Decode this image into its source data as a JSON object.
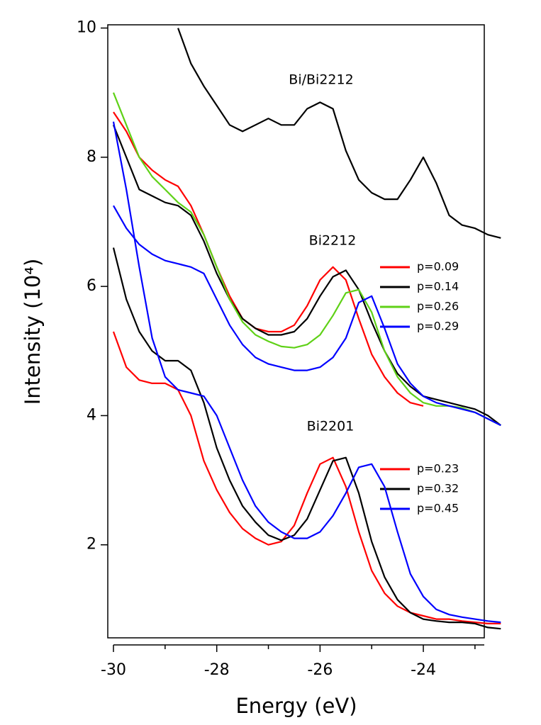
{
  "chart_data": {
    "type": "line",
    "xlabel": "Energy (eV)",
    "ylabel": "Intensity (10⁴)",
    "xlim": [
      -30.11,
      -22.82
    ],
    "ylim": [
      0.56,
      10.05
    ],
    "xticks": [
      -30,
      -28,
      -26,
      -24
    ],
    "x_minor_ticks": [
      -29,
      -27,
      -25,
      -23
    ],
    "yticks": [
      2,
      4,
      6,
      8,
      10
    ],
    "x": [
      -30,
      -29.75,
      -29.5,
      -29.25,
      -29,
      -28.75,
      -28.5,
      -28.25,
      -28,
      -27.75,
      -27.5,
      -27.25,
      -27,
      -26.75,
      -26.5,
      -26.25,
      -26,
      -25.75,
      -25.5,
      -25.25,
      -25,
      -24.75,
      -24.5,
      -24.25,
      -24,
      -23.75,
      -23.5,
      -23.25,
      -23,
      -22.75,
      -22.5
    ],
    "groups": [
      {
        "name": "Bi/Bi2212",
        "series": [
          {
            "color": "#000000",
            "values": [
              null,
              null,
              null,
              null,
              null,
              10.0,
              9.45,
              9.1,
              8.8,
              8.5,
              8.4,
              8.5,
              8.6,
              8.5,
              8.5,
              8.75,
              8.85,
              8.75,
              8.1,
              7.65,
              7.45,
              7.35,
              7.35,
              7.65,
              8.0,
              7.6,
              7.1,
              6.95,
              6.9,
              6.8,
              6.75
            ]
          }
        ]
      },
      {
        "name": "Bi2212",
        "series": [
          {
            "name": "p=0.09",
            "color": "#ff0000",
            "values": [
              8.7,
              8.4,
              8.0,
              7.8,
              7.65,
              7.55,
              7.25,
              6.8,
              6.3,
              5.85,
              5.5,
              5.35,
              5.3,
              5.3,
              5.4,
              5.7,
              6.1,
              6.3,
              6.1,
              5.5,
              4.95,
              4.6,
              4.35,
              4.2,
              4.15,
              null,
              null,
              null,
              null,
              null,
              null
            ]
          },
          {
            "name": "p=0.14",
            "color": "#000000",
            "values": [
              8.5,
              8.0,
              7.5,
              7.4,
              7.3,
              7.25,
              7.1,
              6.7,
              6.2,
              5.8,
              5.5,
              5.35,
              5.25,
              5.25,
              5.3,
              5.5,
              5.85,
              6.15,
              6.25,
              5.95,
              5.45,
              5.0,
              4.65,
              4.45,
              4.3,
              4.25,
              4.2,
              4.15,
              4.1,
              4.0,
              3.85
            ]
          },
          {
            "name": "p=0.26",
            "color": "#5fd117",
            "values": [
              9.0,
              8.5,
              8.0,
              7.7,
              7.5,
              7.3,
              7.15,
              6.8,
              6.3,
              5.8,
              5.45,
              5.25,
              5.15,
              5.07,
              5.05,
              5.1,
              5.25,
              5.55,
              5.9,
              5.95,
              5.6,
              5.0,
              4.6,
              4.35,
              4.2,
              4.15,
              4.15,
              4.12,
              4.05,
              3.95,
              3.85
            ]
          },
          {
            "name": "p=0.29",
            "color": "#0000ff",
            "values": [
              7.25,
              6.9,
              6.65,
              6.5,
              6.4,
              6.35,
              6.3,
              6.2,
              5.8,
              5.4,
              5.1,
              4.9,
              4.8,
              4.75,
              4.7,
              4.7,
              4.75,
              4.9,
              5.2,
              5.75,
              5.85,
              5.35,
              4.8,
              4.5,
              4.3,
              4.2,
              4.15,
              4.1,
              4.05,
              3.95,
              3.85
            ]
          }
        ]
      },
      {
        "name": "Bi2201",
        "series": [
          {
            "name": "p=0.23",
            "color": "#ff0000",
            "values": [
              5.3,
              4.75,
              4.55,
              4.5,
              4.5,
              4.4,
              4.0,
              3.3,
              2.85,
              2.5,
              2.25,
              2.1,
              2.0,
              2.05,
              2.3,
              2.8,
              3.25,
              3.35,
              2.9,
              2.2,
              1.6,
              1.25,
              1.05,
              0.95,
              0.9,
              0.85,
              0.85,
              0.82,
              0.8,
              0.78,
              0.78
            ]
          },
          {
            "name": "p=0.32",
            "color": "#000000",
            "values": [
              6.6,
              5.8,
              5.3,
              5.0,
              4.85,
              4.85,
              4.7,
              4.2,
              3.5,
              3.0,
              2.6,
              2.35,
              2.15,
              2.07,
              2.15,
              2.4,
              2.85,
              3.3,
              3.35,
              2.8,
              2.05,
              1.5,
              1.15,
              0.95,
              0.85,
              0.82,
              0.8,
              0.8,
              0.78,
              0.72,
              0.7
            ]
          },
          {
            "name": "p=0.45",
            "color": "#0000ff",
            "values": [
              8.55,
              7.5,
              6.3,
              5.2,
              4.6,
              4.4,
              4.35,
              4.3,
              4.0,
              3.5,
              3.0,
              2.6,
              2.35,
              2.2,
              2.1,
              2.1,
              2.2,
              2.45,
              2.8,
              3.2,
              3.25,
              2.9,
              2.2,
              1.55,
              1.2,
              1.0,
              0.92,
              0.88,
              0.85,
              0.82,
              0.8
            ]
          }
        ]
      }
    ]
  }
}
